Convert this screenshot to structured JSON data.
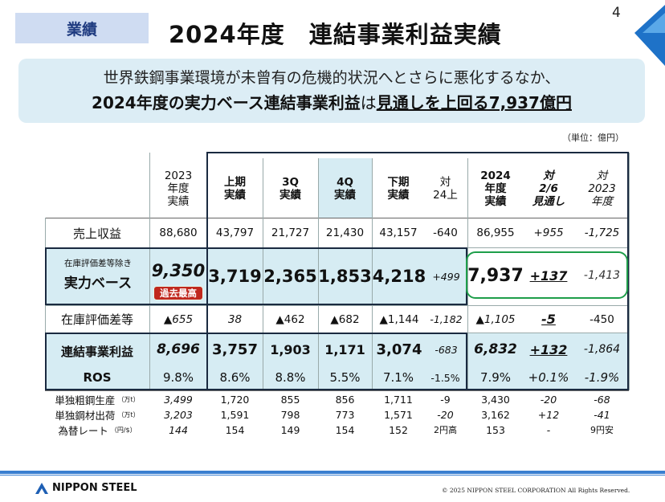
{
  "header": {
    "tag": "業績",
    "title": "2024年度　連結事業利益実績",
    "page_number": "4"
  },
  "summary": {
    "line1": "世界鉄鋼事業環境が未曾有の危機的状況へとさらに悪化するなか、",
    "line2_a": "2024年度の実力ベース連結事業利益",
    "line2_b": "は",
    "line2_c": "見通しを上回る7,937億円"
  },
  "unit": "（単位：億円）",
  "columns": {
    "fy2023": "2023\n年度\n実績",
    "h1": "上期\n実績",
    "q3": "3Q\n実績",
    "q4": "4Q\n実績",
    "h2": "下期\n実績",
    "vs_h1": "対\n24上",
    "fy2024": "2024\n年度\n実績",
    "vs_forecast": "対\n2/6\n見通し",
    "vs_fy2023": "対\n2023\n年度"
  },
  "rows": {
    "revenue": {
      "label": "売上収益",
      "values": [
        "88,680",
        "43,797",
        "21,727",
        "21,430",
        "43,157",
        "-640",
        "86,955",
        "+955",
        "-1,725"
      ]
    },
    "underlying": {
      "label_small": "在庫評価差等除き",
      "label": "実力ベース",
      "badge": "過去最高",
      "values": [
        "9,350",
        "3,719",
        "2,365",
        "1,853",
        "4,218",
        "+499",
        "7,937",
        "+137",
        "-1,413"
      ]
    },
    "inventory": {
      "label": "在庫評価差等",
      "values": [
        "▲655",
        "38",
        "▲462",
        "▲682",
        "▲1,144",
        "-1,182",
        "▲1,105",
        "-5",
        "-450"
      ]
    },
    "business_profit": {
      "label": "連結事業利益",
      "values": [
        "8,696",
        "3,757",
        "1,903",
        "1,171",
        "3,074",
        "-683",
        "6,832",
        "+132",
        "-1,864"
      ]
    },
    "ros": {
      "label": "ROS",
      "values": [
        "9.8%",
        "8.6%",
        "8.8%",
        "5.5%",
        "7.1%",
        "-1.5%",
        "7.9%",
        "+0.1%",
        "-1.9%"
      ]
    },
    "crude_steel": {
      "label": "単独粗鋼生産",
      "unit": "（万t）",
      "values": [
        "3,499",
        "1,720",
        "855",
        "856",
        "1,711",
        "-9",
        "3,430",
        "-20",
        "-68"
      ]
    },
    "shipments": {
      "label": "単独鋼材出荷",
      "unit": "（万t）",
      "values": [
        "3,203",
        "1,591",
        "798",
        "773",
        "1,571",
        "-20",
        "3,162",
        "+12",
        "-41"
      ]
    },
    "fx": {
      "label": "為替レート",
      "unit": "（円/$）",
      "values": [
        "144",
        "154",
        "149",
        "154",
        "152",
        "2円高",
        "153",
        "-",
        "9円安"
      ]
    }
  },
  "footer": {
    "logo": "NIPPON STEEL",
    "copyright": "© 2025 NIPPON STEEL CORPORATION All Rights Reserved."
  },
  "colors": {
    "tag_bg": "#cfdcf2",
    "summary_bg": "#dcedf5",
    "shade": "#d6ecf3",
    "highlight_border": "#1e9e4a",
    "badge_bg": "#c0281e",
    "accent_blue": "#3a7fd0",
    "frame": "#1a2a40"
  }
}
